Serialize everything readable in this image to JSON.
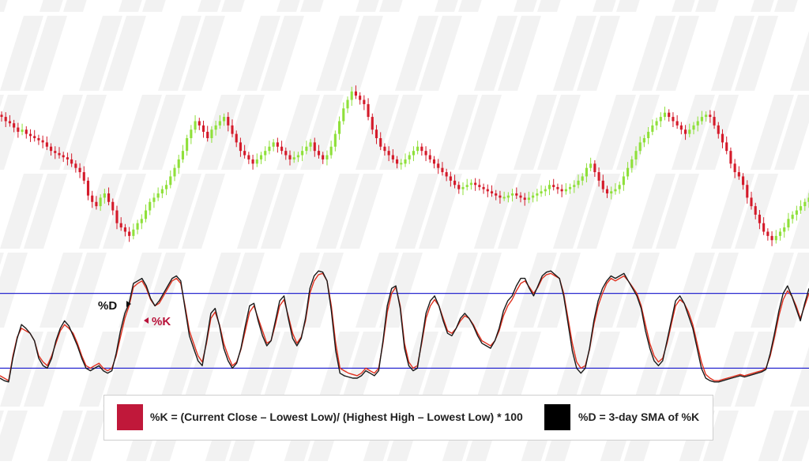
{
  "colors": {
    "bull": "#8fe03a",
    "bear": "#d41a2a",
    "k_line": "#e0301e",
    "d_line": "#1a1a1a",
    "band": "#2a2ad0",
    "k_label": "#b8123a",
    "watermark": "#f2f2f2"
  },
  "annotations": {
    "d_marker": "%D",
    "k_marker": "%K"
  },
  "legend": {
    "k_label": "%K = (Current Close – Lowest Low)/ (Highest High – Lowest Low) * 100",
    "k_color": "#c0183a",
    "d_label": "%D = 3-day SMA of %K",
    "d_color": "#000000"
  },
  "chart_data": [
    {
      "type": "candlestick",
      "title": "",
      "grid": false,
      "closes": [
        62,
        60,
        59,
        57,
        55,
        56,
        54,
        53,
        52,
        51,
        50,
        48,
        46,
        45,
        44,
        43,
        42,
        40,
        38,
        36,
        32,
        25,
        22,
        20,
        24,
        26,
        22,
        18,
        12,
        10,
        8,
        6,
        9,
        12,
        14,
        18,
        22,
        24,
        26,
        28,
        30,
        34,
        38,
        42,
        46,
        52,
        56,
        60,
        58,
        55,
        52,
        56,
        58,
        60,
        62,
        58,
        54,
        50,
        46,
        44,
        42,
        40,
        42,
        44,
        46,
        48,
        50,
        48,
        46,
        44,
        42,
        43,
        44,
        46,
        48,
        50,
        46,
        44,
        42,
        44,
        48,
        54,
        60,
        66,
        70,
        74,
        72,
        70,
        68,
        62,
        56,
        52,
        48,
        46,
        44,
        42,
        40,
        40,
        42,
        44,
        46,
        48,
        46,
        44,
        42,
        40,
        38,
        36,
        34,
        32,
        30,
        28,
        29,
        30,
        31,
        30,
        29,
        28,
        27,
        26,
        25,
        24,
        24,
        25,
        26,
        25,
        24,
        23,
        24,
        25,
        26,
        27,
        28,
        30,
        29,
        28,
        27,
        28,
        29,
        30,
        32,
        34,
        38,
        40,
        36,
        32,
        28,
        26,
        27,
        28,
        30,
        34,
        38,
        42,
        46,
        50,
        52,
        55,
        58,
        60,
        62,
        64,
        62,
        60,
        58,
        56,
        54,
        56,
        58,
        60,
        62,
        63,
        62,
        58,
        54,
        50,
        46,
        40,
        36,
        34,
        30,
        24,
        20,
        16,
        12,
        8,
        6,
        4,
        6,
        8,
        10,
        14,
        16,
        18,
        20,
        22,
        24
      ],
      "bull_color": "#8fe03a",
      "bear_color": "#d41a2a"
    },
    {
      "type": "line",
      "title": "",
      "ylim": [
        0,
        100
      ],
      "overbought": 80,
      "oversold": 20,
      "series": [
        {
          "name": "%K",
          "color": "#e0301e",
          "values": [
            14,
            12,
            10,
            30,
            45,
            52,
            50,
            48,
            42,
            30,
            25,
            22,
            30,
            40,
            50,
            55,
            52,
            48,
            40,
            30,
            22,
            20,
            22,
            24,
            20,
            18,
            20,
            30,
            45,
            60,
            70,
            85,
            88,
            90,
            84,
            75,
            70,
            72,
            78,
            84,
            90,
            92,
            88,
            70,
            50,
            40,
            30,
            25,
            40,
            60,
            65,
            55,
            40,
            30,
            22,
            25,
            35,
            50,
            65,
            70,
            60,
            50,
            40,
            42,
            55,
            70,
            75,
            62,
            48,
            40,
            45,
            58,
            80,
            90,
            95,
            96,
            90,
            70,
            40,
            20,
            18,
            16,
            15,
            14,
            16,
            20,
            18,
            16,
            20,
            40,
            65,
            80,
            85,
            70,
            40,
            25,
            20,
            22,
            40,
            60,
            70,
            75,
            70,
            60,
            50,
            48,
            52,
            58,
            62,
            60,
            55,
            48,
            42,
            40,
            38,
            42,
            50,
            62,
            70,
            75,
            82,
            88,
            90,
            85,
            80,
            85,
            92,
            95,
            96,
            94,
            92,
            80,
            60,
            40,
            25,
            20,
            22,
            35,
            55,
            70,
            80,
            88,
            92,
            90,
            92,
            94,
            90,
            85,
            80,
            70,
            55,
            40,
            30,
            25,
            28,
            40,
            55,
            70,
            75,
            72,
            65,
            55,
            40,
            25,
            15,
            12,
            10,
            10,
            11,
            12,
            13,
            14,
            15,
            14,
            15,
            16,
            17,
            18,
            20,
            30,
            45,
            62,
            75,
            82,
            78,
            70,
            60,
            70,
            80
          ]
        },
        {
          "name": "%D",
          "color": "#1a1a1a",
          "values": [
            12,
            10,
            9,
            28,
            44,
            55,
            52,
            48,
            42,
            28,
            22,
            20,
            28,
            42,
            52,
            58,
            54,
            46,
            38,
            28,
            20,
            18,
            20,
            22,
            18,
            16,
            18,
            32,
            50,
            64,
            72,
            88,
            90,
            92,
            86,
            76,
            70,
            74,
            80,
            86,
            92,
            94,
            90,
            68,
            46,
            36,
            26,
            22,
            42,
            64,
            68,
            54,
            36,
            26,
            20,
            24,
            36,
            54,
            70,
            72,
            58,
            46,
            38,
            42,
            58,
            74,
            78,
            60,
            44,
            38,
            44,
            60,
            84,
            94,
            98,
            97,
            90,
            66,
            34,
            16,
            14,
            13,
            12,
            12,
            14,
            18,
            16,
            14,
            18,
            42,
            70,
            84,
            86,
            68,
            36,
            22,
            18,
            20,
            42,
            64,
            74,
            78,
            70,
            58,
            48,
            46,
            52,
            60,
            64,
            60,
            54,
            46,
            40,
            38,
            36,
            42,
            52,
            66,
            74,
            78,
            86,
            92,
            92,
            84,
            78,
            86,
            94,
            97,
            98,
            95,
            92,
            78,
            56,
            34,
            20,
            16,
            20,
            36,
            58,
            74,
            84,
            90,
            94,
            92,
            94,
            96,
            90,
            84,
            78,
            68,
            50,
            36,
            26,
            22,
            26,
            42,
            58,
            74,
            78,
            72,
            62,
            52,
            36,
            20,
            12,
            10,
            9,
            9,
            10,
            11,
            12,
            13,
            14,
            13,
            14,
            15,
            16,
            17,
            19,
            32,
            48,
            66,
            80,
            86,
            78,
            68,
            58,
            72,
            84
          ]
        }
      ]
    }
  ]
}
